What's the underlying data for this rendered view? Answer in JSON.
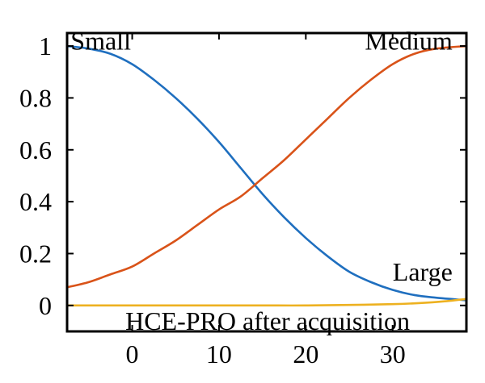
{
  "chart_data": {
    "type": "line",
    "title": "",
    "xlabel": "",
    "ylabel": "",
    "xlim": [
      -7.5,
      38.5
    ],
    "ylim": [
      -0.1,
      1.05
    ],
    "x_ticks": [
      0,
      10,
      20,
      30
    ],
    "x_tick_labels": [
      "0",
      "10",
      "20",
      "30"
    ],
    "y_ticks": [
      0,
      0.2,
      0.4,
      0.6,
      0.8,
      1
    ],
    "y_tick_labels": [
      "0",
      "0.2",
      "0.4",
      "0.6",
      "0.8",
      "1"
    ],
    "grid": false,
    "series": [
      {
        "name": "Small",
        "color": "#1f6fbf",
        "x": [
          -7.5,
          -5,
          -2.5,
          0,
          2.5,
          5,
          7.5,
          10,
          12.5,
          15,
          17.5,
          20,
          22.5,
          25,
          27.5,
          30,
          32.5,
          35,
          38.5
        ],
        "y": [
          1.0,
          0.99,
          0.97,
          0.93,
          0.87,
          0.8,
          0.72,
          0.63,
          0.53,
          0.43,
          0.34,
          0.26,
          0.19,
          0.13,
          0.09,
          0.06,
          0.04,
          0.03,
          0.02
        ]
      },
      {
        "name": "Medium",
        "color": "#d95319",
        "x": [
          -7.5,
          -5,
          -2.5,
          0,
          2.5,
          5,
          7.5,
          10,
          12.5,
          15,
          17.5,
          20,
          22.5,
          25,
          27.5,
          30,
          32.5,
          35,
          38.5
        ],
        "y": [
          0.07,
          0.09,
          0.12,
          0.15,
          0.2,
          0.25,
          0.31,
          0.37,
          0.42,
          0.49,
          0.56,
          0.64,
          0.72,
          0.8,
          0.87,
          0.93,
          0.97,
          0.99,
          1.0
        ]
      },
      {
        "name": "HCE-PRO after acquisition",
        "color": "#edb120",
        "x": [
          -7.5,
          0,
          5,
          10,
          15,
          20,
          25,
          30,
          33,
          36,
          38.5
        ],
        "y": [
          0.0,
          0.0,
          0.0,
          0.0,
          0.0,
          0.0,
          0.002,
          0.005,
          0.009,
          0.016,
          0.025
        ]
      }
    ],
    "annotations": [
      {
        "text": "Small",
        "x": -7.1,
        "y": 1.02,
        "anchor": "start"
      },
      {
        "text": "Medium",
        "x": 36.9,
        "y": 1.02,
        "anchor": "end"
      },
      {
        "text": "Large",
        "x": 36.9,
        "y": 0.13,
        "anchor": "end"
      },
      {
        "text": "HCE-PRO after acquisition",
        "x": 15.6,
        "y": -0.06,
        "anchor": "middle"
      }
    ]
  }
}
